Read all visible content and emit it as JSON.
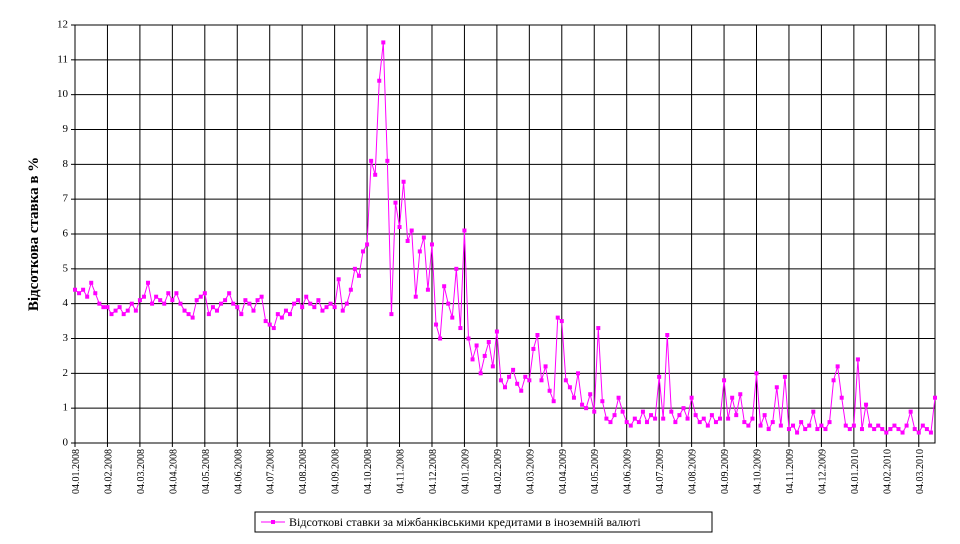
{
  "chart_data": {
    "type": "line",
    "y_label": "Відсоткова ставка в %",
    "categories": [
      "04.01.2008",
      null,
      null,
      null,
      null,
      null,
      null,
      null,
      "04.02.2008",
      null,
      null,
      null,
      null,
      null,
      null,
      null,
      "04.03.2008",
      null,
      null,
      null,
      null,
      null,
      null,
      null,
      "04.04.2008",
      null,
      null,
      null,
      null,
      null,
      null,
      null,
      "04.05.2008",
      null,
      null,
      null,
      null,
      null,
      null,
      null,
      "04.06.2008",
      null,
      null,
      null,
      null,
      null,
      null,
      null,
      "04.07.2008",
      null,
      null,
      null,
      null,
      null,
      null,
      null,
      "04.08.2008",
      null,
      null,
      null,
      null,
      null,
      null,
      null,
      "04.09.2008",
      null,
      null,
      null,
      null,
      null,
      null,
      null,
      "04.10.2008",
      null,
      null,
      null,
      null,
      null,
      null,
      null,
      "04.11.2008",
      null,
      null,
      null,
      null,
      null,
      null,
      null,
      "04.12.2008",
      null,
      null,
      null,
      null,
      null,
      null,
      null,
      "04.01.2009",
      null,
      null,
      null,
      null,
      null,
      null,
      null,
      "04.02.2009",
      null,
      null,
      null,
      null,
      null,
      null,
      null,
      "04.03.2009",
      null,
      null,
      null,
      null,
      null,
      null,
      null,
      "04.04.2009",
      null,
      null,
      null,
      null,
      null,
      null,
      null,
      "04.05.2009",
      null,
      null,
      null,
      null,
      null,
      null,
      null,
      "04.06.2009",
      null,
      null,
      null,
      null,
      null,
      null,
      null,
      "04.07.2009",
      null,
      null,
      null,
      null,
      null,
      null,
      null,
      "04.08.2009",
      null,
      null,
      null,
      null,
      null,
      null,
      null,
      "04.09.2009",
      null,
      null,
      null,
      null,
      null,
      null,
      null,
      "04.10.2009",
      null,
      null,
      null,
      null,
      null,
      null,
      null,
      "04.11.2009",
      null,
      null,
      null,
      null,
      null,
      null,
      null,
      "04.12.2009",
      null,
      null,
      null,
      null,
      null,
      null,
      null,
      "04.01.2010",
      null,
      null,
      null,
      null,
      null,
      null,
      null,
      "04.02.2010",
      null,
      null,
      null,
      null,
      null,
      null,
      null,
      "04.03.2010",
      null,
      null,
      null,
      null
    ],
    "series": [
      {
        "name": "Відсоткові ставки за міжбанківськими кредитами в іноземній валюті",
        "color": "#ff00ff",
        "values": [
          4.4,
          4.3,
          4.4,
          4.2,
          4.6,
          4.3,
          4.0,
          3.9,
          3.9,
          3.7,
          3.8,
          3.9,
          3.7,
          3.8,
          4.0,
          3.8,
          4.1,
          4.2,
          4.6,
          4.0,
          4.2,
          4.1,
          4.0,
          4.3,
          4.1,
          4.3,
          4.0,
          3.8,
          3.7,
          3.6,
          4.1,
          4.2,
          4.3,
          3.7,
          3.9,
          3.8,
          4.0,
          4.1,
          4.3,
          4.0,
          3.9,
          3.7,
          4.1,
          4.0,
          3.8,
          4.1,
          4.2,
          3.5,
          3.4,
          3.3,
          3.7,
          3.6,
          3.8,
          3.7,
          4.0,
          4.1,
          3.9,
          4.2,
          4.0,
          3.9,
          4.1,
          3.8,
          3.9,
          4.0,
          3.9,
          4.7,
          3.8,
          4.0,
          4.4,
          5.0,
          4.8,
          5.5,
          5.7,
          8.1,
          7.7,
          10.4,
          11.5,
          8.1,
          3.7,
          6.9,
          6.2,
          7.5,
          5.8,
          6.1,
          4.2,
          5.5,
          5.9,
          4.4,
          5.7,
          3.4,
          3.0,
          4.5,
          4.0,
          3.6,
          5.0,
          3.3,
          6.1,
          3.0,
          2.4,
          2.8,
          2.0,
          2.5,
          2.9,
          2.2,
          3.2,
          1.8,
          1.6,
          1.9,
          2.1,
          1.7,
          1.5,
          1.9,
          1.8,
          2.7,
          3.1,
          1.8,
          2.2,
          1.5,
          1.2,
          3.6,
          3.5,
          1.8,
          1.6,
          1.3,
          2.0,
          1.1,
          1.0,
          1.4,
          0.9,
          3.3,
          1.2,
          0.7,
          0.6,
          0.8,
          1.3,
          0.9,
          0.6,
          0.5,
          0.7,
          0.6,
          0.9,
          0.6,
          0.8,
          0.7,
          1.9,
          0.7,
          3.1,
          0.9,
          0.6,
          0.8,
          1.0,
          0.7,
          1.3,
          0.8,
          0.6,
          0.7,
          0.5,
          0.8,
          0.6,
          0.7,
          1.8,
          0.7,
          1.3,
          0.8,
          1.4,
          0.6,
          0.5,
          0.7,
          2.0,
          0.5,
          0.8,
          0.4,
          0.6,
          1.6,
          0.5,
          1.9,
          0.4,
          0.5,
          0.3,
          0.6,
          0.4,
          0.5,
          0.9,
          0.4,
          0.5,
          0.4,
          0.6,
          1.8,
          2.2,
          1.3,
          0.5,
          0.4,
          0.5,
          2.4,
          0.4,
          1.1,
          0.5,
          0.4,
          0.5,
          0.4,
          0.3,
          0.4,
          0.5,
          0.4,
          0.3,
          0.5,
          0.9,
          0.4,
          0.3,
          0.5,
          0.4,
          0.3,
          1.3
        ]
      }
    ],
    "ylim": [
      0,
      12
    ],
    "yticks": [
      0,
      1,
      2,
      3,
      4,
      5,
      6,
      7,
      8,
      9,
      10,
      11,
      12
    ],
    "grid": true
  }
}
